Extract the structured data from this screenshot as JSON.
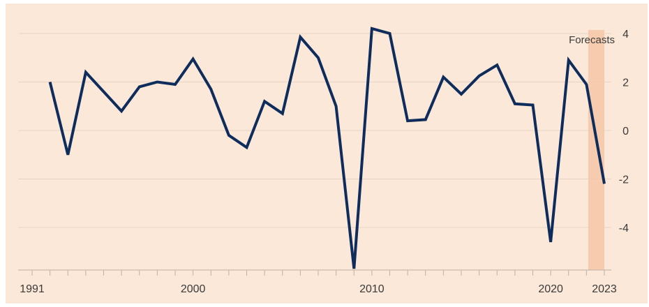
{
  "chart_data": {
    "type": "line",
    "title": "",
    "xlabel": "",
    "ylabel": "",
    "xlim": [
      1991,
      2023
    ],
    "ylim": [
      -5.7,
      4.3
    ],
    "x_ticks": [
      {
        "value": 1991,
        "label": "1991"
      },
      {
        "value": 2000,
        "label": "2000"
      },
      {
        "value": 2010,
        "label": "2010"
      },
      {
        "value": 2020,
        "label": "2020"
      },
      {
        "value": 2023,
        "label": "2023"
      }
    ],
    "y_ticks": [
      {
        "value": 4,
        "label": "4"
      },
      {
        "value": 2,
        "label": "2"
      },
      {
        "value": 0,
        "label": "0"
      },
      {
        "value": -2,
        "label": "-2"
      },
      {
        "value": -4,
        "label": "-4"
      }
    ],
    "grid": true,
    "series": [
      {
        "name": "",
        "color": "#0f2d5c",
        "x": [
          1992,
          1993,
          1994,
          1995,
          1996,
          1997,
          1998,
          1999,
          2000,
          2001,
          2002,
          2003,
          2004,
          2005,
          2006,
          2007,
          2008,
          2009,
          2010,
          2011,
          2012,
          2013,
          2014,
          2015,
          2016,
          2017,
          2018,
          2019,
          2020,
          2021,
          2022,
          2023
        ],
        "values": [
          2.0,
          -1.0,
          2.4,
          1.6,
          0.8,
          1.8,
          2.0,
          1.9,
          2.95,
          1.7,
          -0.2,
          -0.7,
          1.2,
          0.7,
          3.85,
          3.0,
          1.0,
          -5.7,
          4.2,
          4.0,
          0.4,
          0.45,
          2.2,
          1.5,
          2.25,
          2.7,
          1.1,
          1.05,
          -4.6,
          2.9,
          1.9,
          -2.2
        ]
      }
    ],
    "annotations": [
      {
        "label": "Forecasts",
        "x_from": 2022.1,
        "x_to": 2023,
        "shade_color": "#f6c5a6"
      }
    ]
  }
}
